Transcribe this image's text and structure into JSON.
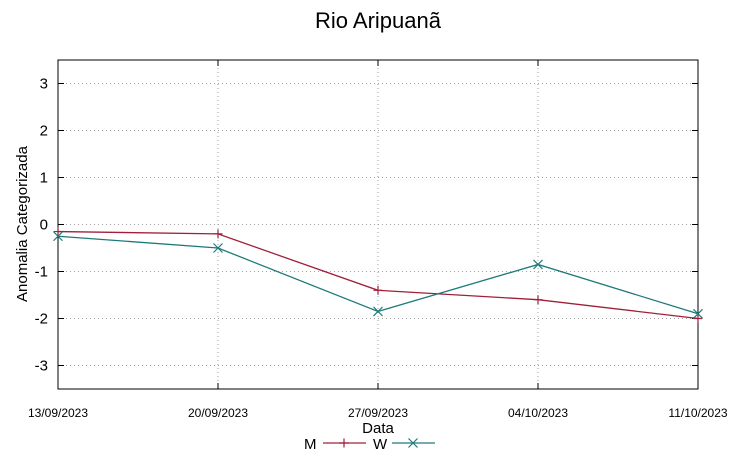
{
  "chart_data": {
    "type": "line",
    "title": "Rio Aripuanã",
    "xlabel": "Data",
    "ylabel": "Anomalia Categorizada",
    "categories": [
      "13/09/2023",
      "20/09/2023",
      "27/09/2023",
      "04/10/2023",
      "11/10/2023"
    ],
    "yticks": [
      3,
      2,
      1,
      0,
      -1,
      -2,
      -3
    ],
    "ylim": [
      -3.5,
      3.5
    ],
    "grid": true,
    "legend_position": "bottom",
    "series": [
      {
        "name": "M",
        "color": "#a0203a",
        "marker": "plus",
        "values": [
          -0.15,
          -0.2,
          -1.4,
          -1.6,
          -2.0
        ]
      },
      {
        "name": "W",
        "color": "#1e7a7a",
        "marker": "cross",
        "values": [
          -0.25,
          -0.5,
          -1.85,
          -0.85,
          -1.9
        ]
      }
    ]
  }
}
